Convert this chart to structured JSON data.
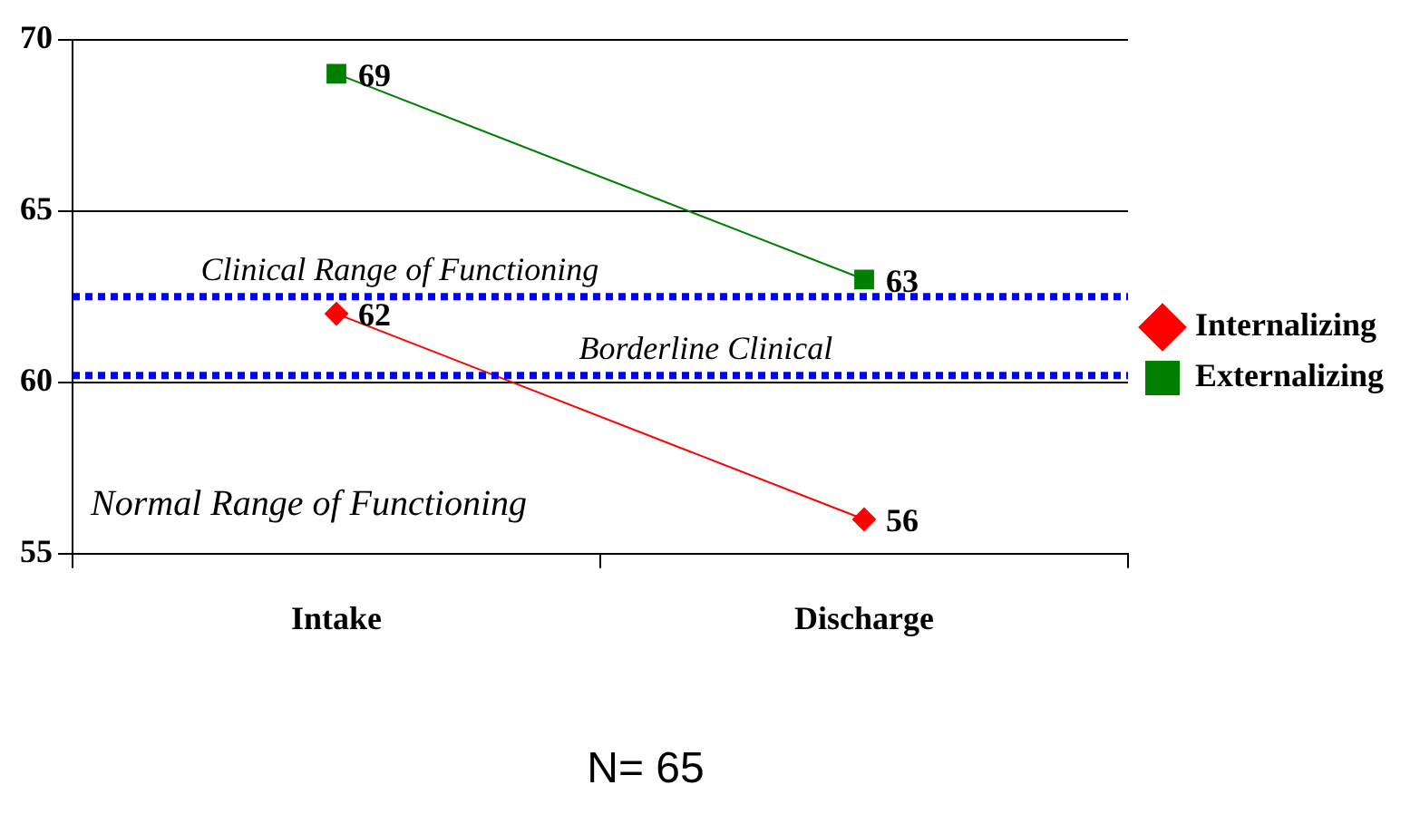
{
  "chart_data": {
    "type": "line",
    "categories": [
      "Intake",
      "Discharge"
    ],
    "series": [
      {
        "name": "Internalizing",
        "color": "#ff0000",
        "marker": "diamond",
        "values": [
          62,
          56
        ]
      },
      {
        "name": "Externalizing",
        "color": "#008000",
        "marker": "square",
        "values": [
          69,
          63
        ]
      }
    ],
    "ylim": [
      55,
      70
    ],
    "yticks": [
      55,
      60,
      65,
      70
    ],
    "grid": "y",
    "legend": "right",
    "data_labels": true,
    "ref_lines": [
      {
        "axis": "y",
        "value": 62.5,
        "label": "Clinical Range of Functioning",
        "color": "#0000ff",
        "line_style": "dotted"
      },
      {
        "axis": "y",
        "value": 60.2,
        "label": "Borderline Clinical",
        "color": "#0000ff",
        "line_style": "dotted"
      }
    ],
    "annotations": [
      "Normal Range of Functioning",
      "N= 65"
    ]
  }
}
